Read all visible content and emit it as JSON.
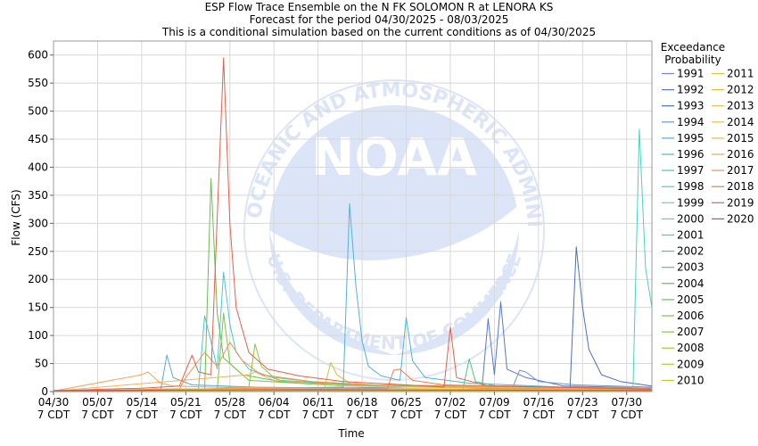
{
  "chart_data": {
    "type": "line",
    "title_lines": [
      "ESP Flow Trace Ensemble on the N FK SOLOMON R at LENORA KS",
      "Forecast for the period 04/30/2025 - 08/03/2025",
      "This is a conditional simulation based on the current conditions as of 04/30/2025"
    ],
    "xlabel": "Time",
    "ylabel": "Flow (CFS)",
    "x_start": "2025-04-30",
    "x_end": "2025-08-03",
    "ylim": [
      0,
      625
    ],
    "y_ticks": [
      0,
      50,
      100,
      150,
      200,
      250,
      300,
      350,
      400,
      450,
      500,
      550,
      600
    ],
    "x_ticks": [
      {
        "date": "2025-04-30",
        "label": "04/30",
        "sub": "7 CDT"
      },
      {
        "date": "2025-05-07",
        "label": "05/07",
        "sub": "7 CDT"
      },
      {
        "date": "2025-05-14",
        "label": "05/14",
        "sub": "7 CDT"
      },
      {
        "date": "2025-05-21",
        "label": "05/21",
        "sub": "7 CDT"
      },
      {
        "date": "2025-05-28",
        "label": "05/28",
        "sub": "7 CDT"
      },
      {
        "date": "2025-06-04",
        "label": "06/04",
        "sub": "7 CDT"
      },
      {
        "date": "2025-06-11",
        "label": "06/11",
        "sub": "7 CDT"
      },
      {
        "date": "2025-06-18",
        "label": "06/18",
        "sub": "7 CDT"
      },
      {
        "date": "2025-06-25",
        "label": "06/25",
        "sub": "7 CDT"
      },
      {
        "date": "2025-07-02",
        "label": "07/02",
        "sub": "7 CDT"
      },
      {
        "date": "2025-07-09",
        "label": "07/09",
        "sub": "7 CDT"
      },
      {
        "date": "2025-07-16",
        "label": "07/16",
        "sub": "7 CDT"
      },
      {
        "date": "2025-07-23",
        "label": "07/23",
        "sub": "7 CDT"
      },
      {
        "date": "2025-07-30",
        "label": "07/30",
        "sub": "7 CDT"
      }
    ],
    "grid": true,
    "legend_title": [
      "Exceedance",
      "Probability"
    ],
    "legend_placement": "right",
    "watermark_text": [
      "NATIONAL OCEANIC AND ATMOSPHERIC ADMINISTRATION",
      "U.S. DEPARTMENT OF COMMERCE",
      "NOAA"
    ],
    "series": [
      {
        "name": "1991",
        "color": "#6f86d6",
        "points": [
          [
            "2025-04-30",
            1
          ],
          [
            "2025-06-10",
            1
          ],
          [
            "2025-06-20",
            3
          ],
          [
            "2025-07-01",
            4
          ],
          [
            "2025-07-10",
            6
          ],
          [
            "2025-07-20",
            7
          ],
          [
            "2025-08-03",
            6
          ]
        ]
      },
      {
        "name": "1992",
        "color": "#5a78c8",
        "points": [
          [
            "2025-04-30",
            1
          ],
          [
            "2025-06-20",
            2
          ],
          [
            "2025-07-07",
            3
          ],
          [
            "2025-07-08",
            130
          ],
          [
            "2025-07-09",
            30
          ],
          [
            "2025-07-10",
            160
          ],
          [
            "2025-07-11",
            40
          ],
          [
            "2025-07-14",
            25
          ],
          [
            "2025-07-20",
            10
          ],
          [
            "2025-07-28",
            8
          ],
          [
            "2025-08-03",
            6
          ]
        ]
      },
      {
        "name": "1993",
        "color": "#4a6fbf",
        "points": [
          [
            "2025-04-30",
            1
          ],
          [
            "2025-07-21",
            5
          ],
          [
            "2025-07-22",
            258
          ],
          [
            "2025-07-23",
            150
          ],
          [
            "2025-07-24",
            75
          ],
          [
            "2025-07-26",
            30
          ],
          [
            "2025-07-29",
            18
          ],
          [
            "2025-08-03",
            10
          ]
        ]
      },
      {
        "name": "1994",
        "color": "#6b96d8",
        "points": [
          [
            "2025-04-30",
            1
          ],
          [
            "2025-07-12",
            10
          ],
          [
            "2025-07-13",
            38
          ],
          [
            "2025-07-14",
            35
          ],
          [
            "2025-07-16",
            18
          ],
          [
            "2025-07-22",
            12
          ],
          [
            "2025-08-03",
            8
          ]
        ]
      },
      {
        "name": "1995",
        "color": "#5aa8d8",
        "points": [
          [
            "2025-04-30",
            1
          ],
          [
            "2025-05-17",
            2
          ],
          [
            "2025-05-18",
            65
          ],
          [
            "2025-05-19",
            25
          ],
          [
            "2025-05-22",
            12
          ],
          [
            "2025-06-01",
            8
          ],
          [
            "2025-06-15",
            6
          ],
          [
            "2025-07-01",
            4
          ],
          [
            "2025-08-03",
            2
          ]
        ]
      },
      {
        "name": "1996",
        "color": "#4fb4d8",
        "points": [
          [
            "2025-04-30",
            1
          ],
          [
            "2025-06-15",
            8
          ],
          [
            "2025-06-16",
            335
          ],
          [
            "2025-06-17",
            190
          ],
          [
            "2025-06-18",
            90
          ],
          [
            "2025-06-19",
            45
          ],
          [
            "2025-06-21",
            28
          ],
          [
            "2025-06-24",
            20
          ],
          [
            "2025-06-25",
            132
          ],
          [
            "2025-06-26",
            55
          ],
          [
            "2025-06-28",
            25
          ],
          [
            "2025-07-05",
            15
          ],
          [
            "2025-07-20",
            8
          ],
          [
            "2025-08-03",
            5
          ]
        ]
      },
      {
        "name": "1997",
        "color": "#4ac6c8",
        "points": [
          [
            "2025-04-30",
            1
          ],
          [
            "2025-05-23",
            3
          ],
          [
            "2025-05-24",
            135
          ],
          [
            "2025-05-25",
            90
          ],
          [
            "2025-05-26",
            40
          ],
          [
            "2025-05-27",
            213
          ],
          [
            "2025-05-28",
            120
          ],
          [
            "2025-05-29",
            70
          ],
          [
            "2025-05-31",
            40
          ],
          [
            "2025-06-05",
            20
          ],
          [
            "2025-06-20",
            10
          ],
          [
            "2025-08-03",
            5
          ]
        ]
      },
      {
        "name": "1998",
        "color": "#44d4c4",
        "points": [
          [
            "2025-04-30",
            1
          ],
          [
            "2025-07-31",
            2
          ],
          [
            "2025-08-01",
            468
          ],
          [
            "2025-08-02",
            220
          ],
          [
            "2025-08-03",
            150
          ]
        ]
      },
      {
        "name": "1999",
        "color": "#5cd9b8",
        "points": [
          [
            "2025-04-30",
            1
          ],
          [
            "2025-06-01",
            3
          ],
          [
            "2025-07-01",
            4
          ],
          [
            "2025-08-03",
            3
          ]
        ]
      },
      {
        "name": "2000",
        "color": "#54d6a8",
        "points": [
          [
            "2025-04-30",
            1
          ],
          [
            "2025-06-15",
            2
          ],
          [
            "2025-08-03",
            2
          ]
        ]
      },
      {
        "name": "2001",
        "color": "#4ccf98",
        "points": [
          [
            "2025-04-30",
            1
          ],
          [
            "2025-06-01",
            2
          ],
          [
            "2025-08-03",
            1
          ]
        ]
      },
      {
        "name": "2002",
        "color": "#46c688",
        "points": [
          [
            "2025-04-30",
            1
          ],
          [
            "2025-07-04",
            5
          ],
          [
            "2025-07-05",
            58
          ],
          [
            "2025-07-06",
            18
          ],
          [
            "2025-07-10",
            8
          ],
          [
            "2025-08-03",
            4
          ]
        ]
      },
      {
        "name": "2003",
        "color": "#52c278",
        "points": [
          [
            "2025-04-30",
            1
          ],
          [
            "2025-06-01",
            4
          ],
          [
            "2025-07-01",
            3
          ],
          [
            "2025-08-03",
            2
          ]
        ]
      },
      {
        "name": "2004",
        "color": "#5cbf64",
        "points": [
          [
            "2025-04-30",
            1
          ],
          [
            "2025-05-28",
            3
          ],
          [
            "2025-06-20",
            4
          ],
          [
            "2025-08-03",
            2
          ]
        ]
      },
      {
        "name": "2005",
        "color": "#66bf50",
        "points": [
          [
            "2025-04-30",
            1
          ],
          [
            "2025-05-24",
            2
          ],
          [
            "2025-05-25",
            380
          ],
          [
            "2025-05-26",
            140
          ],
          [
            "2025-05-27",
            60
          ],
          [
            "2025-05-30",
            30
          ],
          [
            "2025-06-05",
            18
          ],
          [
            "2025-06-20",
            10
          ],
          [
            "2025-08-03",
            4
          ]
        ]
      },
      {
        "name": "2006",
        "color": "#78c446",
        "points": [
          [
            "2025-04-30",
            1
          ],
          [
            "2025-05-26",
            4
          ],
          [
            "2025-05-27",
            140
          ],
          [
            "2025-05-28",
            50
          ],
          [
            "2025-05-31",
            20
          ],
          [
            "2025-06-15",
            10
          ],
          [
            "2025-08-03",
            4
          ]
        ]
      },
      {
        "name": "2007",
        "color": "#8cc63e",
        "points": [
          [
            "2025-04-30",
            1
          ],
          [
            "2025-05-20",
            3
          ],
          [
            "2025-05-31",
            8
          ],
          [
            "2025-06-01",
            85
          ],
          [
            "2025-06-02",
            45
          ],
          [
            "2025-06-04",
            25
          ],
          [
            "2025-06-15",
            12
          ],
          [
            "2025-08-03",
            5
          ]
        ]
      },
      {
        "name": "2008",
        "color": "#a0c83a",
        "points": [
          [
            "2025-04-30",
            1
          ],
          [
            "2025-06-10",
            4
          ],
          [
            "2025-08-03",
            3
          ]
        ]
      },
      {
        "name": "2009",
        "color": "#b4c836",
        "points": [
          [
            "2025-04-30",
            1
          ],
          [
            "2025-05-20",
            4
          ],
          [
            "2025-06-10",
            5
          ],
          [
            "2025-08-03",
            3
          ]
        ]
      },
      {
        "name": "2010",
        "color": "#c6c834",
        "points": [
          [
            "2025-04-30",
            1
          ],
          [
            "2025-06-12",
            5
          ],
          [
            "2025-06-13",
            52
          ],
          [
            "2025-06-14",
            30
          ],
          [
            "2025-06-16",
            15
          ],
          [
            "2025-06-25",
            8
          ],
          [
            "2025-08-03",
            4
          ]
        ]
      },
      {
        "name": "2011",
        "color": "#d4c434",
        "points": [
          [
            "2025-04-30",
            1
          ],
          [
            "2025-06-01",
            3
          ],
          [
            "2025-08-03",
            2
          ]
        ]
      },
      {
        "name": "2012",
        "color": "#e0c03a",
        "points": [
          [
            "2025-04-30",
            1
          ],
          [
            "2025-06-01",
            2
          ],
          [
            "2025-08-03",
            1
          ]
        ]
      },
      {
        "name": "2013",
        "color": "#e8bc44",
        "points": [
          [
            "2025-04-30",
            1
          ],
          [
            "2025-05-20",
            5
          ],
          [
            "2025-06-20",
            4
          ],
          [
            "2025-08-03",
            2
          ]
        ]
      },
      {
        "name": "2014",
        "color": "#efba52",
        "points": [
          [
            "2025-04-30",
            1
          ],
          [
            "2025-06-20",
            3
          ],
          [
            "2025-08-03",
            2
          ]
        ]
      },
      {
        "name": "2015",
        "color": "#f2b15c",
        "points": [
          [
            "2025-04-30",
            1
          ],
          [
            "2025-05-31",
            30
          ],
          [
            "2025-06-01",
            35
          ],
          [
            "2025-06-04",
            20
          ],
          [
            "2025-06-15",
            10
          ],
          [
            "2025-08-03",
            5
          ]
        ]
      },
      {
        "name": "2016",
        "color": "#f2a35c",
        "points": [
          [
            "2025-04-30",
            1
          ],
          [
            "2025-05-14",
            30
          ],
          [
            "2025-05-15",
            35
          ],
          [
            "2025-05-17",
            15
          ],
          [
            "2025-05-19",
            10
          ],
          [
            "2025-05-25",
            8
          ],
          [
            "2025-06-10",
            6
          ],
          [
            "2025-08-03",
            3
          ]
        ]
      },
      {
        "name": "2017",
        "color": "#f09255",
        "points": [
          [
            "2025-04-30",
            1
          ],
          [
            "2025-05-20",
            5
          ],
          [
            "2025-05-21",
            25
          ],
          [
            "2025-05-24",
            70
          ],
          [
            "2025-05-26",
            45
          ],
          [
            "2025-05-28",
            88
          ],
          [
            "2025-05-30",
            55
          ],
          [
            "2025-06-02",
            30
          ],
          [
            "2025-06-10",
            18
          ],
          [
            "2025-06-20",
            12
          ],
          [
            "2025-08-03",
            6
          ]
        ]
      },
      {
        "name": "2018",
        "color": "#ea7c4e",
        "points": [
          [
            "2025-04-30",
            1
          ],
          [
            "2025-06-22",
            5
          ],
          [
            "2025-06-23",
            38
          ],
          [
            "2025-06-24",
            40
          ],
          [
            "2025-06-26",
            20
          ],
          [
            "2025-07-01",
            12
          ],
          [
            "2025-08-03",
            5
          ]
        ]
      },
      {
        "name": "2019",
        "color": "#e66048",
        "points": [
          [
            "2025-04-30",
            1
          ],
          [
            "2025-05-07",
            4
          ],
          [
            "2025-05-14",
            6
          ],
          [
            "2025-05-20",
            10
          ],
          [
            "2025-05-22",
            65
          ],
          [
            "2025-05-23",
            35
          ],
          [
            "2025-05-25",
            30
          ],
          [
            "2025-05-27",
            595
          ],
          [
            "2025-05-28",
            300
          ],
          [
            "2025-05-29",
            150
          ],
          [
            "2025-05-31",
            70
          ],
          [
            "2025-06-03",
            40
          ],
          [
            "2025-06-08",
            28
          ],
          [
            "2025-06-15",
            18
          ],
          [
            "2025-06-25",
            12
          ],
          [
            "2025-07-01",
            8
          ],
          [
            "2025-07-02",
            115
          ],
          [
            "2025-07-03",
            25
          ],
          [
            "2025-07-08",
            10
          ],
          [
            "2025-08-03",
            4
          ]
        ]
      },
      {
        "name": "2020",
        "color": "#e04848",
        "points": [
          [
            "2025-04-30",
            2
          ],
          [
            "2025-05-07",
            2
          ],
          [
            "2025-06-01",
            3
          ],
          [
            "2025-08-03",
            2
          ]
        ]
      }
    ]
  }
}
